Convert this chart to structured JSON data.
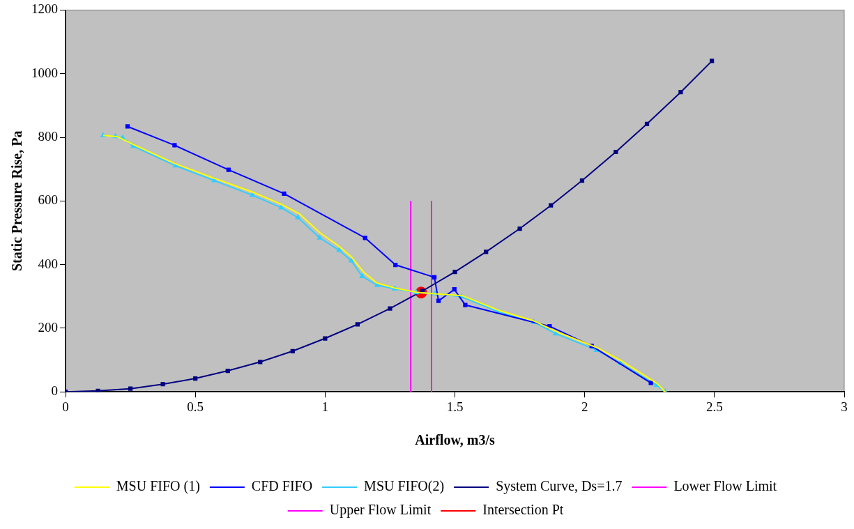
{
  "chart_data": {
    "type": "line",
    "xlabel": "Airflow, m3/s",
    "ylabel": "Static Pressure Rise, Pa",
    "xlim": [
      0,
      3
    ],
    "xticks": [
      0,
      0.5,
      1,
      1.5,
      2,
      2.5,
      3
    ],
    "ylim": [
      0,
      1200
    ],
    "yticks": [
      0,
      200,
      400,
      600,
      800,
      1000,
      1200
    ],
    "grid": false,
    "legend": "bottom",
    "line_style": "solid",
    "series": [
      {
        "name": "MSU FIFO (1)",
        "color": "#ffff00",
        "marker": "none",
        "x": [
          0.145,
          0.2,
          0.26,
          0.42,
          0.57,
          0.72,
          0.83,
          0.9,
          0.98,
          1.05,
          1.1,
          1.15,
          1.2,
          1.27,
          1.35,
          1.42,
          1.53,
          1.67,
          1.8,
          1.89,
          2.05,
          2.14,
          2.28,
          2.31
        ],
        "values": [
          806,
          802,
          778,
          718,
          672,
          628,
          590,
          560,
          500,
          460,
          425,
          375,
          342,
          326,
          313,
          308,
          302,
          256,
          224,
          190,
          138,
          98,
          26,
          0
        ]
      },
      {
        "name": "CFD FIFO",
        "color": "#0000ff",
        "marker": "square",
        "x": [
          0.239,
          0.42,
          0.628,
          0.842,
          1.154,
          1.271,
          1.421,
          1.437,
          1.498,
          1.54,
          1.865,
          2.027,
          2.255
        ],
        "values": [
          834,
          775,
          698,
          623,
          484,
          399,
          360,
          286,
          322,
          273,
          206,
          144,
          28
        ]
      },
      {
        "name": "MSU FIFO(2)",
        "color": "#33ccff",
        "marker": "triangle",
        "x": [
          0.145,
          0.192,
          0.22,
          0.261,
          0.423,
          0.573,
          0.72,
          0.831,
          0.895,
          0.979,
          1.054,
          1.101,
          1.143,
          1.201,
          1.268,
          1.351,
          1.423,
          1.526,
          1.665,
          1.804,
          1.888,
          2.046,
          2.138,
          2.277,
          2.31
        ],
        "values": [
          806,
          803,
          798,
          772,
          711,
          664,
          618,
          579,
          548,
          484,
          445,
          412,
          363,
          335,
          324,
          312,
          309,
          299,
          252,
          219,
          183,
          131,
          90,
          21,
          0
        ]
      },
      {
        "name": "System Curve, Ds=1.7",
        "color": "#000080",
        "marker": "square",
        "x": [
          0,
          0.125,
          0.25,
          0.375,
          0.5,
          0.625,
          0.75,
          0.875,
          1,
          1.125,
          1.25,
          1.375,
          1.5,
          1.62,
          1.75,
          1.87,
          1.99,
          2.12,
          2.24,
          2.37,
          2.49
        ],
        "values": [
          0,
          3,
          10,
          24,
          42,
          66,
          94,
          128,
          168,
          212,
          262,
          317,
          377,
          440,
          513,
          586,
          664,
          754,
          842,
          942,
          1040
        ]
      },
      {
        "name": "Lower Flow Limit",
        "color": "#ff00ff",
        "marker": "none",
        "x": [
          1.33,
          1.33
        ],
        "values": [
          0,
          600
        ]
      },
      {
        "name": "Upper Flow Limit",
        "color": "#ff00ff",
        "marker": "none",
        "x": [
          1.41,
          1.41
        ],
        "values": [
          0,
          600
        ]
      },
      {
        "name": "Intersection Pt",
        "type": "scatter",
        "color": "#ff0000",
        "marker": "circle",
        "x": [
          1.37
        ],
        "values": [
          312
        ]
      }
    ]
  }
}
